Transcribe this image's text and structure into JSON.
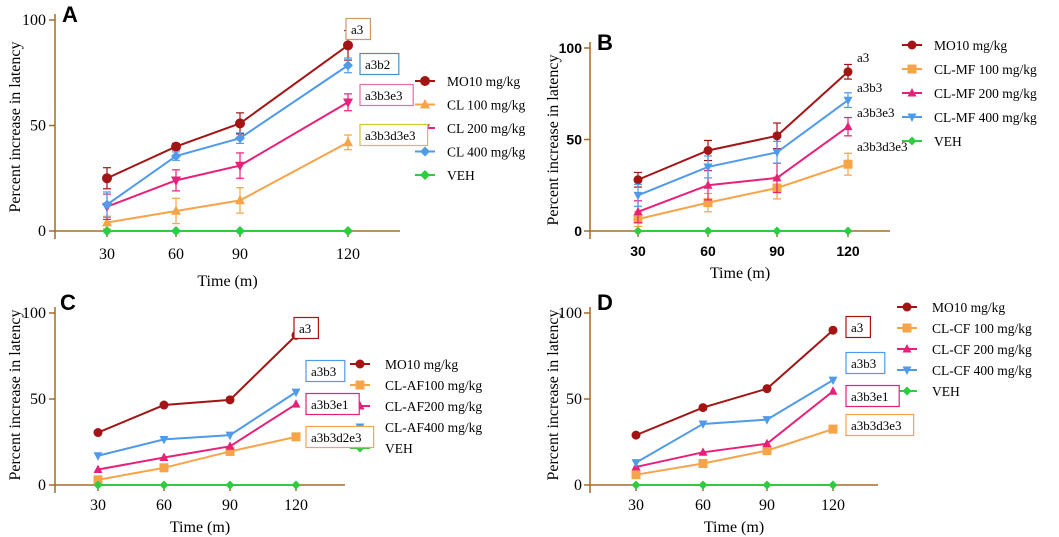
{
  "chart_data": [
    {
      "panel": "A",
      "type": "line",
      "xlabel": "Time (m)",
      "ylabel": "Percent increase in latency",
      "categories": [
        30,
        60,
        90,
        120
      ],
      "ylim": [
        0,
        100
      ],
      "yticks": [
        0,
        50,
        100
      ],
      "series": [
        {
          "name": "MO10 mg/kg",
          "color": "#a31515",
          "marker": "circle",
          "values": [
            25,
            40,
            51,
            88
          ],
          "errors": [
            5,
            1.5,
            5,
            7
          ]
        },
        {
          "name": "CL 100 mg/kg",
          "color": "#f7a449",
          "marker": "triangle-up",
          "values": [
            4,
            9.5,
            14.5,
            42
          ],
          "errors": [
            3,
            6,
            6,
            3.5
          ]
        },
        {
          "name": "CL  200 mg/kg",
          "color": "#e8207a",
          "marker": "triangle-down",
          "values": [
            11.5,
            24,
            31,
            61
          ],
          "errors": [
            6,
            5,
            6,
            4
          ]
        },
        {
          "name": "CL 400 mg/kg",
          "color": "#4f9bea",
          "marker": "diamond",
          "values": [
            12.5,
            35.5,
            44,
            78.5
          ],
          "errors": [
            6,
            2,
            2.5,
            3.5
          ]
        },
        {
          "name": "VEH",
          "color": "#2ecc40",
          "marker": "diamond",
          "values": [
            0,
            0,
            0,
            0
          ],
          "errors": [
            0,
            0,
            0,
            0
          ]
        }
      ],
      "annotations": [
        {
          "text": "a3",
          "boxed": true,
          "box_color": "#c99a6b"
        },
        {
          "text": "a3b2",
          "boxed": true,
          "box_color": "#4a8fb8"
        },
        {
          "text": "a3b3e3",
          "boxed": true,
          "box_color": "#e070a5"
        },
        {
          "text": "a3b3d3e3",
          "boxed": true,
          "box_color": "#d4c03a"
        }
      ]
    },
    {
      "panel": "B",
      "type": "line",
      "xlabel": "Time (m)",
      "ylabel": "Percent increase in latency",
      "categories": [
        30,
        60,
        90,
        120
      ],
      "ylim": [
        0,
        100
      ],
      "yticks": [
        0,
        50,
        100
      ],
      "series": [
        {
          "name": "MO10 mg/kg",
          "color": "#a31515",
          "marker": "circle",
          "values": [
            28,
            44,
            52,
            87
          ],
          "errors": [
            4,
            5.5,
            7,
            4
          ]
        },
        {
          "name": "CL-MF 100 mg/kg",
          "color": "#f7a449",
          "marker": "square",
          "values": [
            6.5,
            15.5,
            23.5,
            36.5
          ],
          "errors": [
            4,
            5,
            6,
            6
          ]
        },
        {
          "name": "CL-MF 200 mg/kg",
          "color": "#e8207a",
          "marker": "triangle-up",
          "values": [
            10.5,
            25,
            29,
            57
          ],
          "errors": [
            6,
            8,
            8,
            5
          ]
        },
        {
          "name": "CL-MF 400 mg/kg",
          "color": "#4f9bea",
          "marker": "triangle-down",
          "values": [
            19.5,
            35,
            43,
            71.5
          ],
          "errors": [
            6,
            6,
            6,
            4
          ]
        },
        {
          "name": "VEH",
          "color": "#2ecc40",
          "marker": "diamond",
          "values": [
            0,
            0,
            0,
            0
          ],
          "errors": [
            0,
            0,
            0,
            0
          ]
        }
      ],
      "annotations": [
        {
          "text": "a3",
          "boxed": false
        },
        {
          "text": "a3b3",
          "boxed": false
        },
        {
          "text": "a3b3e3",
          "boxed": false
        },
        {
          "text": "a3b3d3e3",
          "boxed": false
        }
      ]
    },
    {
      "panel": "C",
      "type": "line",
      "xlabel": "Time (m)",
      "ylabel": "Percent increase in latency",
      "categories": [
        30,
        60,
        90,
        120
      ],
      "ylim": [
        0,
        100
      ],
      "yticks": [
        0,
        50,
        100
      ],
      "series": [
        {
          "name": "MO10 mg/kg",
          "color": "#a31515",
          "marker": "circle",
          "values": [
            30.5,
            46.5,
            49.5,
            87
          ],
          "errors": [
            0,
            0,
            0,
            0
          ]
        },
        {
          "name": "CL-AF100 mg/kg",
          "color": "#f7a449",
          "marker": "square",
          "values": [
            3,
            10,
            19.5,
            28
          ],
          "errors": [
            0,
            0,
            0,
            0
          ]
        },
        {
          "name": "CL-AF200 mg/kg",
          "color": "#e8207a",
          "marker": "triangle-up",
          "values": [
            9,
            16,
            22.5,
            47
          ],
          "errors": [
            0,
            0,
            0,
            0
          ]
        },
        {
          "name": "CL-AF400 mg/kg",
          "color": "#4f9bea",
          "marker": "triangle-down",
          "values": [
            17,
            26.5,
            29,
            54
          ],
          "errors": [
            0,
            0,
            0,
            0
          ]
        },
        {
          "name": "VEH",
          "color": "#2ecc40",
          "marker": "diamond",
          "values": [
            0,
            0,
            0,
            0
          ],
          "errors": [
            0,
            0,
            0,
            0
          ]
        }
      ],
      "annotations": [
        {
          "text": "a3",
          "boxed": true,
          "box_color": "#a31515"
        },
        {
          "text": "a3b3",
          "boxed": true,
          "box_color": "#4f9bea"
        },
        {
          "text": "a3b3e1",
          "boxed": true,
          "box_color": "#e8207a"
        },
        {
          "text": "a3b3d2e3",
          "boxed": true,
          "box_color": "#f7a449"
        }
      ]
    },
    {
      "panel": "D",
      "type": "line",
      "xlabel": "Time (m)",
      "ylabel": "Percent increase in latency",
      "categories": [
        30,
        60,
        90,
        120
      ],
      "ylim": [
        0,
        100
      ],
      "yticks": [
        0,
        50,
        100
      ],
      "series": [
        {
          "name": "MO10 mg/kg",
          "color": "#a31515",
          "marker": "circle",
          "values": [
            29,
            45,
            56,
            90
          ],
          "errors": [
            0,
            0,
            0,
            0
          ]
        },
        {
          "name": "CL-CF 100 mg/kg",
          "color": "#f7a449",
          "marker": "square",
          "values": [
            6,
            12.5,
            20,
            32.5
          ],
          "errors": [
            0,
            0,
            0,
            0
          ]
        },
        {
          "name": "CL-CF 200 mg/kg",
          "color": "#e8207a",
          "marker": "triangle-up",
          "values": [
            10.5,
            19,
            24,
            54.5
          ],
          "errors": [
            0,
            0,
            0,
            0
          ]
        },
        {
          "name": "CL-CF 400 mg/kg",
          "color": "#4f9bea",
          "marker": "triangle-down",
          "values": [
            13,
            35.5,
            38,
            61
          ],
          "errors": [
            0,
            0,
            0,
            0
          ]
        },
        {
          "name": "VEH",
          "color": "#2ecc40",
          "marker": "diamond",
          "values": [
            0,
            0,
            0,
            0
          ],
          "errors": [
            0,
            0,
            0,
            0
          ]
        }
      ],
      "annotations": [
        {
          "text": "a3",
          "boxed": true,
          "box_color": "#a31515"
        },
        {
          "text": "a3b3",
          "boxed": true,
          "box_color": "#4f9bea"
        },
        {
          "text": "a3b3e1",
          "boxed": true,
          "box_color": "#e8207a"
        },
        {
          "text": "a3b3d3e3",
          "boxed": true,
          "box_color": "#f7a449"
        }
      ]
    }
  ]
}
